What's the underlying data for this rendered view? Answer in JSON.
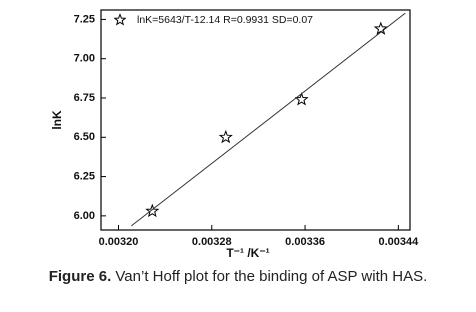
{
  "chart_data": {
    "type": "scatter",
    "xlabel": "T⁻¹ /K⁻¹",
    "ylabel": "lnK",
    "xlim": [
      0.003185,
      0.00345
    ],
    "ylim": [
      5.91,
      7.31
    ],
    "xticks": [
      {
        "value": 0.0032,
        "label": "0.00320"
      },
      {
        "value": 0.00328,
        "label": "0.00328"
      },
      {
        "value": 0.00336,
        "label": "0.00336"
      },
      {
        "value": 0.00344,
        "label": "0.00344"
      }
    ],
    "yticks": [
      {
        "value": 6,
        "label": "6.00"
      },
      6.25,
      {
        "value": 6.5,
        "label": "6.50"
      },
      6.75,
      {
        "value": 7,
        "label": "7.00"
      },
      7.25
    ],
    "legend": "upper left",
    "series": [
      {
        "name": "lnK=5643/T-12.14  R=0.9931  SD=0.07",
        "color": "#000000",
        "x": [
          0.003229,
          0.003292,
          0.003357,
          0.003425
        ],
        "values": [
          6.03,
          6.5,
          6.74,
          7.19
        ]
      },
      {
        "type": "line",
        "color": "#333333",
        "x": [
          0.003211,
          0.003446
        ],
        "values": [
          5.936,
          7.29
        ]
      }
    ]
  },
  "caption": {
    "label": "Figure 6.",
    "text": "Van’t Hoff plot for the binding of ASP with HAS."
  }
}
